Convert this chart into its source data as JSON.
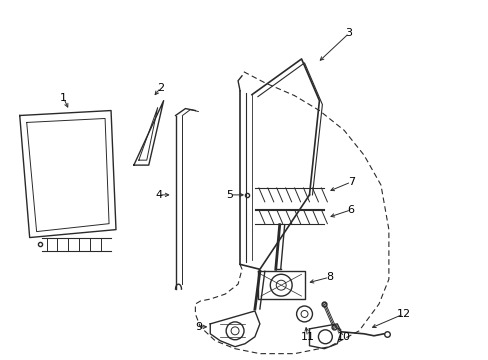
{
  "bg_color": "#ffffff",
  "line_color": "#2a2a2a",
  "dashed_color": "#2a2a2a",
  "label_color": "#000000",
  "figsize": [
    4.89,
    3.6
  ],
  "dpi": 100
}
